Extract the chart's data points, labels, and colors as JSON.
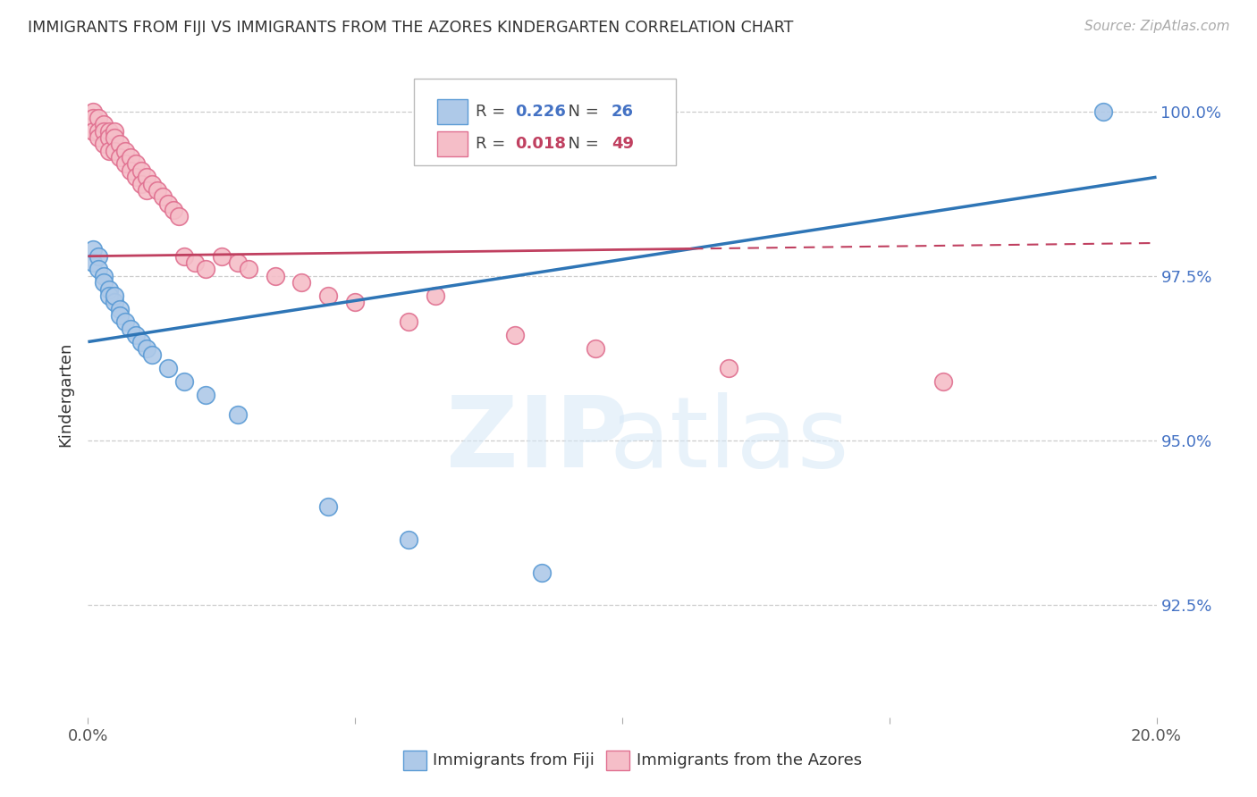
{
  "title": "IMMIGRANTS FROM FIJI VS IMMIGRANTS FROM THE AZORES KINDERGARTEN CORRELATION CHART",
  "source": "Source: ZipAtlas.com",
  "ylabel": "Kindergarten",
  "xlim": [
    0.0,
    0.2
  ],
  "ylim": [
    0.908,
    1.006
  ],
  "xticks": [
    0.0,
    0.05,
    0.1,
    0.15,
    0.2
  ],
  "xtick_labels": [
    "0.0%",
    "",
    "",
    "",
    "20.0%"
  ],
  "yticks": [
    0.925,
    0.95,
    0.975,
    1.0
  ],
  "ytick_labels": [
    "92.5%",
    "95.0%",
    "97.5%",
    "100.0%"
  ],
  "fiji_color": "#aec9e8",
  "fiji_edge_color": "#5b9bd5",
  "azores_color": "#f5bec8",
  "azores_edge_color": "#e07090",
  "fiji_R": 0.226,
  "fiji_N": 26,
  "azores_R": 0.018,
  "azores_N": 49,
  "fiji_line_color": "#2e75b6",
  "azores_line_color": "#c04060",
  "background_color": "#ffffff",
  "fiji_x": [
    0.001,
    0.001,
    0.002,
    0.002,
    0.003,
    0.003,
    0.004,
    0.004,
    0.005,
    0.005,
    0.006,
    0.006,
    0.007,
    0.008,
    0.009,
    0.01,
    0.011,
    0.012,
    0.015,
    0.018,
    0.022,
    0.028,
    0.045,
    0.06,
    0.085,
    0.19
  ],
  "fiji_y": [
    0.979,
    0.977,
    0.978,
    0.976,
    0.975,
    0.974,
    0.973,
    0.972,
    0.971,
    0.972,
    0.97,
    0.969,
    0.968,
    0.967,
    0.966,
    0.965,
    0.964,
    0.963,
    0.961,
    0.959,
    0.957,
    0.954,
    0.94,
    0.935,
    0.93,
    1.0
  ],
  "azores_x": [
    0.001,
    0.001,
    0.001,
    0.002,
    0.002,
    0.002,
    0.003,
    0.003,
    0.003,
    0.004,
    0.004,
    0.004,
    0.005,
    0.005,
    0.005,
    0.006,
    0.006,
    0.007,
    0.007,
    0.008,
    0.008,
    0.009,
    0.009,
    0.01,
    0.01,
    0.011,
    0.011,
    0.012,
    0.013,
    0.014,
    0.015,
    0.016,
    0.017,
    0.018,
    0.02,
    0.022,
    0.025,
    0.028,
    0.03,
    0.035,
    0.04,
    0.045,
    0.05,
    0.06,
    0.065,
    0.08,
    0.095,
    0.12,
    0.16
  ],
  "azores_y": [
    1.0,
    0.999,
    0.997,
    0.999,
    0.997,
    0.996,
    0.998,
    0.997,
    0.995,
    0.997,
    0.996,
    0.994,
    0.997,
    0.996,
    0.994,
    0.995,
    0.993,
    0.994,
    0.992,
    0.993,
    0.991,
    0.992,
    0.99,
    0.991,
    0.989,
    0.99,
    0.988,
    0.989,
    0.988,
    0.987,
    0.986,
    0.985,
    0.984,
    0.978,
    0.977,
    0.976,
    0.978,
    0.977,
    0.976,
    0.975,
    0.974,
    0.972,
    0.971,
    0.968,
    0.972,
    0.966,
    0.964,
    0.961,
    0.959
  ],
  "fiji_line_x0": 0.0,
  "fiji_line_y0": 0.965,
  "fiji_line_x1": 0.2,
  "fiji_line_y1": 0.99,
  "azores_line_x0": 0.0,
  "azores_line_y0": 0.978,
  "azores_line_x1": 0.2,
  "azores_line_y1": 0.98
}
